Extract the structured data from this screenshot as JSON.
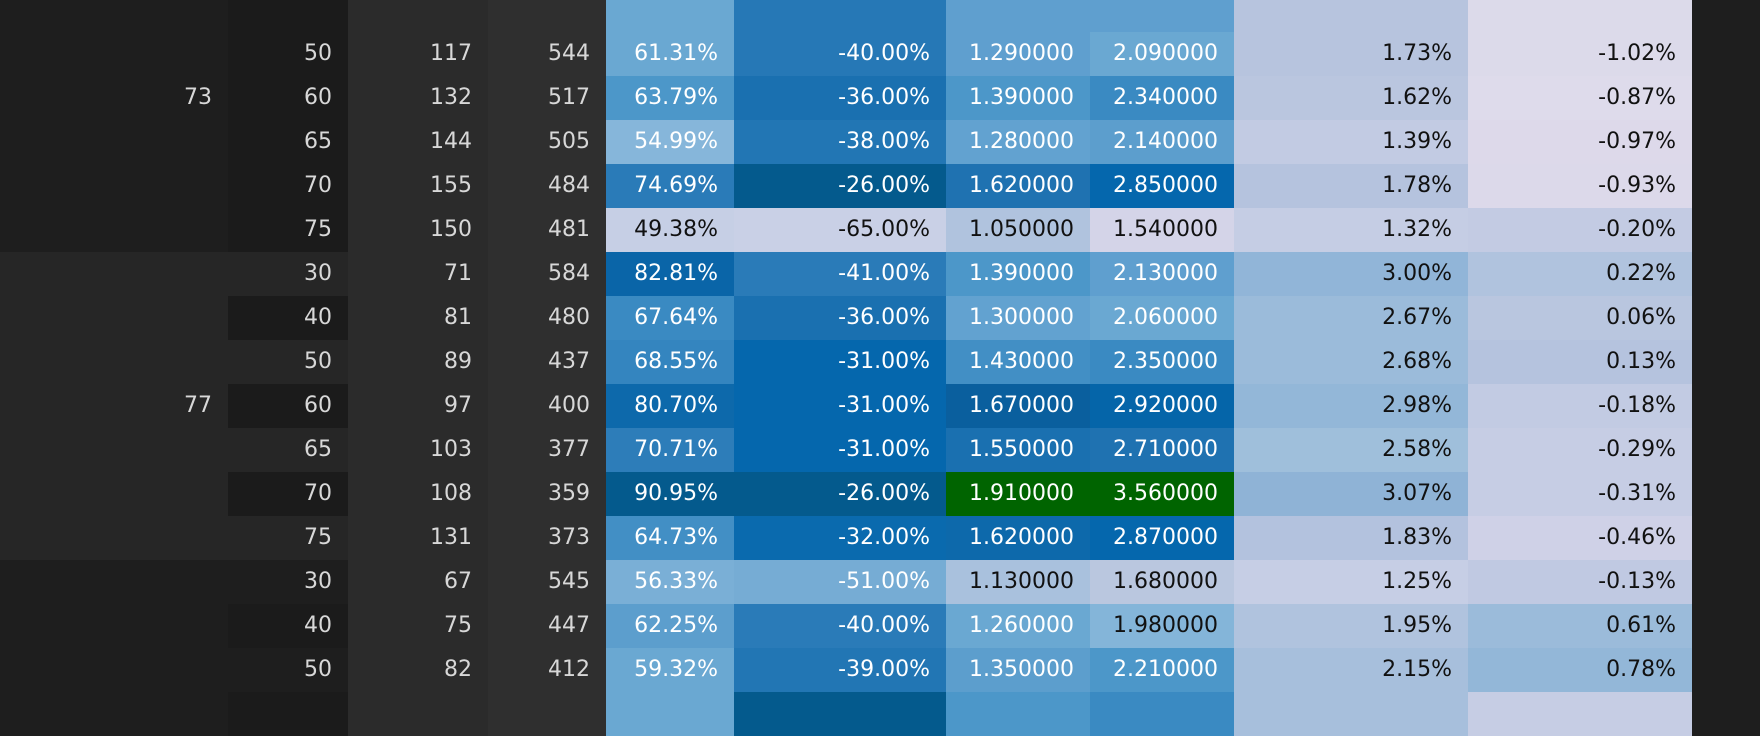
{
  "table": {
    "rows": [
      {
        "group": "",
        "c1": "",
        "c2": "",
        "c3": "",
        "c4": "",
        "c5": "",
        "c6": "",
        "c7": "",
        "c8": "",
        "c9": "",
        "colors": [
          "#1e1e1e",
          "#1b1b1b",
          "#2b2b2b",
          "#2f2f2f",
          "#6aa8d2",
          "#2678b6",
          "#5f9fcf",
          "#5f9fcf",
          "#b7c4de",
          "#dcdaea"
        ],
        "text": [
          "#d8d8d8",
          "#d8d8d8",
          "#d8d8d8",
          "#d8d8d8",
          "#ffffff",
          "#ffffff",
          "#ffffff",
          "#ffffff",
          "#111111",
          "#111111"
        ]
      },
      {
        "group": "",
        "c1": "50",
        "c2": "117",
        "c3": "544",
        "c4": "61.31%",
        "c5": "-40.00%",
        "c6": "1.290000",
        "c7": "2.090000",
        "c8": "1.73%",
        "c9": "-1.02%",
        "colors": [
          "#1e1e1e",
          "#1b1b1b",
          "#2b2b2b",
          "#2f2f2f",
          "#6aa8d2",
          "#2678b6",
          "#5f9fcf",
          "#6aa8d2",
          "#b7c4de",
          "#dcdaea"
        ],
        "text": [
          "#d8d8d8",
          "#d8d8d8",
          "#d8d8d8",
          "#d8d8d8",
          "#ffffff",
          "#ffffff",
          "#ffffff",
          "#ffffff",
          "#111111",
          "#111111"
        ]
      },
      {
        "group": "73",
        "c1": "60",
        "c2": "132",
        "c3": "517",
        "c4": "63.79%",
        "c5": "-36.00%",
        "c6": "1.390000",
        "c7": "2.340000",
        "c8": "1.62%",
        "c9": "-0.87%",
        "colors": [
          "#1e1e1e",
          "#1b1b1b",
          "#2b2b2b",
          "#2f2f2f",
          "#4c97c9",
          "#1a70b0",
          "#4c97c9",
          "#3a8ac2",
          "#bac6df",
          "#dedbeb"
        ],
        "text": [
          "#d8d8d8",
          "#d8d8d8",
          "#d8d8d8",
          "#d8d8d8",
          "#ffffff",
          "#ffffff",
          "#ffffff",
          "#ffffff",
          "#111111",
          "#111111"
        ]
      },
      {
        "group": "",
        "c1": "65",
        "c2": "144",
        "c3": "505",
        "c4": "54.99%",
        "c5": "-38.00%",
        "c6": "1.280000",
        "c7": "2.140000",
        "c8": "1.39%",
        "c9": "-0.97%",
        "colors": [
          "#1e1e1e",
          "#1b1b1b",
          "#2b2b2b",
          "#2f2f2f",
          "#86b6da",
          "#2276b4",
          "#62a2d0",
          "#5c9ecd",
          "#c2cbe3",
          "#ddd9ea"
        ],
        "text": [
          "#d8d8d8",
          "#d8d8d8",
          "#d8d8d8",
          "#d8d8d8",
          "#ffffff",
          "#ffffff",
          "#ffffff",
          "#ffffff",
          "#111111",
          "#111111"
        ]
      },
      {
        "group": "",
        "c1": "70",
        "c2": "155",
        "c3": "484",
        "c4": "74.69%",
        "c5": "-26.00%",
        "c6": "1.620000",
        "c7": "2.850000",
        "c8": "1.78%",
        "c9": "-0.93%",
        "colors": [
          "#1e1e1e",
          "#1b1b1b",
          "#2b2b2b",
          "#2f2f2f",
          "#2a7bb8",
          "#045a8d",
          "#1f72b1",
          "#0567ad",
          "#b5c3de",
          "#dcd9ea"
        ],
        "text": [
          "#d8d8d8",
          "#d8d8d8",
          "#d8d8d8",
          "#d8d8d8",
          "#ffffff",
          "#ffffff",
          "#ffffff",
          "#ffffff",
          "#111111",
          "#111111"
        ]
      },
      {
        "group": "",
        "c1": "75",
        "c2": "150",
        "c3": "481",
        "c4": "49.38%",
        "c5": "-65.00%",
        "c6": "1.050000",
        "c7": "1.540000",
        "c8": "1.32%",
        "c9": "-0.20%",
        "colors": [
          "#1e1e1e",
          "#1b1b1b",
          "#2b2b2b",
          "#2f2f2f",
          "#c6cfe5",
          "#c9d0e6",
          "#b0c3de",
          "#d4d4e8",
          "#c5cde4",
          "#c3cbe3"
        ],
        "text": [
          "#d8d8d8",
          "#d8d8d8",
          "#d8d8d8",
          "#d8d8d8",
          "#111111",
          "#111111",
          "#111111",
          "#111111",
          "#111111",
          "#111111"
        ]
      },
      {
        "group": "",
        "c1": "30",
        "c2": "71",
        "c3": "584",
        "c4": "82.81%",
        "c5": "-41.00%",
        "c6": "1.390000",
        "c7": "2.130000",
        "c8": "3.00%",
        "c9": "0.22%",
        "colors": [
          "#262626",
          "#262626",
          "#2b2b2b",
          "#2f2f2f",
          "#0a65a8",
          "#2a7bb8",
          "#4c97c9",
          "#5f9fcf",
          "#91b5d8",
          "#b0c3de"
        ],
        "text": [
          "#d8d8d8",
          "#d8d8d8",
          "#d8d8d8",
          "#d8d8d8",
          "#ffffff",
          "#ffffff",
          "#ffffff",
          "#ffffff",
          "#111111",
          "#111111"
        ]
      },
      {
        "group": "",
        "c1": "40",
        "c2": "81",
        "c3": "480",
        "c4": "67.64%",
        "c5": "-36.00%",
        "c6": "1.300000",
        "c7": "2.060000",
        "c8": "2.67%",
        "c9": "0.06%",
        "colors": [
          "#262626",
          "#1b1b1b",
          "#2b2b2b",
          "#2f2f2f",
          "#3a8ac2",
          "#1a70b0",
          "#62a2d0",
          "#6aa8d2",
          "#9bbbda",
          "#b9c6df"
        ],
        "text": [
          "#d8d8d8",
          "#d8d8d8",
          "#d8d8d8",
          "#d8d8d8",
          "#ffffff",
          "#ffffff",
          "#ffffff",
          "#ffffff",
          "#111111",
          "#111111"
        ]
      },
      {
        "group": "",
        "c1": "50",
        "c2": "89",
        "c3": "437",
        "c4": "68.55%",
        "c5": "-31.00%",
        "c6": "1.430000",
        "c7": "2.350000",
        "c8": "2.68%",
        "c9": "0.13%",
        "colors": [
          "#262626",
          "#262626",
          "#2b2b2b",
          "#2f2f2f",
          "#3485bf",
          "#0567ad",
          "#428fc5",
          "#3a8ac2",
          "#9bbbda",
          "#b5c3de"
        ],
        "text": [
          "#d8d8d8",
          "#d8d8d8",
          "#d8d8d8",
          "#d8d8d8",
          "#ffffff",
          "#ffffff",
          "#ffffff",
          "#ffffff",
          "#111111",
          "#111111"
        ]
      },
      {
        "group": "77",
        "c1": "60",
        "c2": "97",
        "c3": "400",
        "c4": "80.70%",
        "c5": "-31.00%",
        "c6": "1.670000",
        "c7": "2.920000",
        "c8": "2.98%",
        "c9": "-0.18%",
        "colors": [
          "#262626",
          "#1b1b1b",
          "#2b2b2b",
          "#2f2f2f",
          "#0d69ab",
          "#0567ad",
          "#0a5f9e",
          "#0565a9",
          "#93b7d8",
          "#c2cbe3"
        ],
        "text": [
          "#d8d8d8",
          "#d8d8d8",
          "#d8d8d8",
          "#d8d8d8",
          "#ffffff",
          "#ffffff",
          "#ffffff",
          "#ffffff",
          "#111111",
          "#111111"
        ]
      },
      {
        "group": "",
        "c1": "65",
        "c2": "103",
        "c3": "377",
        "c4": "70.71%",
        "c5": "-31.00%",
        "c6": "1.550000",
        "c7": "2.710000",
        "c8": "2.58%",
        "c9": "-0.29%",
        "colors": [
          "#262626",
          "#262626",
          "#2b2b2b",
          "#2f2f2f",
          "#2d7db9",
          "#0567ad",
          "#1a70b0",
          "#1f72b1",
          "#9fbfdb",
          "#c6cde4"
        ],
        "text": [
          "#d8d8d8",
          "#d8d8d8",
          "#d8d8d8",
          "#d8d8d8",
          "#ffffff",
          "#ffffff",
          "#ffffff",
          "#ffffff",
          "#111111",
          "#111111"
        ]
      },
      {
        "group": "",
        "c1": "70",
        "c2": "108",
        "c3": "359",
        "c4": "90.95%",
        "c5": "-26.00%",
        "c6": "1.910000",
        "c7": "3.560000",
        "c8": "3.07%",
        "c9": "-0.31%",
        "colors": [
          "#262626",
          "#1b1b1b",
          "#2b2b2b",
          "#2f2f2f",
          "#045a8d",
          "#045a8d",
          "#006400",
          "#006400",
          "#8fb3d6",
          "#c6cde4"
        ],
        "text": [
          "#d8d8d8",
          "#d8d8d8",
          "#d8d8d8",
          "#d8d8d8",
          "#ffffff",
          "#ffffff",
          "#ffffff",
          "#ffffff",
          "#111111",
          "#111111"
        ]
      },
      {
        "group": "",
        "c1": "75",
        "c2": "131",
        "c3": "373",
        "c4": "64.73%",
        "c5": "-32.00%",
        "c6": "1.620000",
        "c7": "2.870000",
        "c8": "1.83%",
        "c9": "-0.46%",
        "colors": [
          "#262626",
          "#262626",
          "#2b2b2b",
          "#2f2f2f",
          "#428fc5",
          "#0a6aae",
          "#0d69ab",
          "#0567ad",
          "#b3c2de",
          "#cfd1e7"
        ],
        "text": [
          "#d8d8d8",
          "#d8d8d8",
          "#d8d8d8",
          "#d8d8d8",
          "#ffffff",
          "#ffffff",
          "#ffffff",
          "#ffffff",
          "#111111",
          "#111111"
        ]
      },
      {
        "group": "",
        "c1": "30",
        "c2": "67",
        "c3": "545",
        "c4": "56.33%",
        "c5": "-51.00%",
        "c6": "1.130000",
        "c7": "1.680000",
        "c8": "1.25%",
        "c9": "-0.13%",
        "colors": [
          "#1e1e1e",
          "#1e1e1e",
          "#2b2b2b",
          "#2f2f2f",
          "#7aafd6",
          "#76acd4",
          "#a9c1dd",
          "#bac7df",
          "#c6cee5",
          "#c0c9e2"
        ],
        "text": [
          "#d8d8d8",
          "#d8d8d8",
          "#d8d8d8",
          "#d8d8d8",
          "#ffffff",
          "#ffffff",
          "#111111",
          "#111111",
          "#111111",
          "#111111"
        ]
      },
      {
        "group": "",
        "c1": "40",
        "c2": "75",
        "c3": "447",
        "c4": "62.25%",
        "c5": "-40.00%",
        "c6": "1.260000",
        "c7": "1.980000",
        "c8": "1.95%",
        "c9": "0.61%",
        "colors": [
          "#1e1e1e",
          "#1b1b1b",
          "#2b2b2b",
          "#2f2f2f",
          "#5c9ecd",
          "#2a7bb8",
          "#6aa8d2",
          "#84b5d9",
          "#b0c3de",
          "#9bbbda"
        ],
        "text": [
          "#d8d8d8",
          "#d8d8d8",
          "#d8d8d8",
          "#d8d8d8",
          "#ffffff",
          "#ffffff",
          "#ffffff",
          "#111111",
          "#111111",
          "#111111"
        ]
      },
      {
        "group": "",
        "c1": "50",
        "c2": "82",
        "c3": "412",
        "c4": "59.32%",
        "c5": "-39.00%",
        "c6": "1.350000",
        "c7": "2.210000",
        "c8": "2.15%",
        "c9": "0.78%",
        "colors": [
          "#1e1e1e",
          "#1e1e1e",
          "#2b2b2b",
          "#2f2f2f",
          "#6aa8d2",
          "#2276b4",
          "#5c9ecd",
          "#4c97c9",
          "#a7bfdc",
          "#93b7d8"
        ],
        "text": [
          "#d8d8d8",
          "#d8d8d8",
          "#d8d8d8",
          "#d8d8d8",
          "#ffffff",
          "#ffffff",
          "#ffffff",
          "#ffffff",
          "#111111",
          "#111111"
        ]
      },
      {
        "group": "",
        "c1": "",
        "c2": "",
        "c3": "",
        "c4": "",
        "c5": "",
        "c6": "",
        "c7": "",
        "c8": "",
        "c9": "",
        "colors": [
          "#1e1e1e",
          "#1b1b1b",
          "#2b2b2b",
          "#2f2f2f",
          "#6aa8d2",
          "#045a8d",
          "#4c97c9",
          "#3a8ac2",
          "#a7bfdc",
          "#c6cde4"
        ],
        "text": [
          "#d8d8d8",
          "#d8d8d8",
          "#d8d8d8",
          "#d8d8d8",
          "#ffffff",
          "#ffffff",
          "#ffffff",
          "#ffffff",
          "#111111",
          "#111111"
        ]
      }
    ]
  }
}
